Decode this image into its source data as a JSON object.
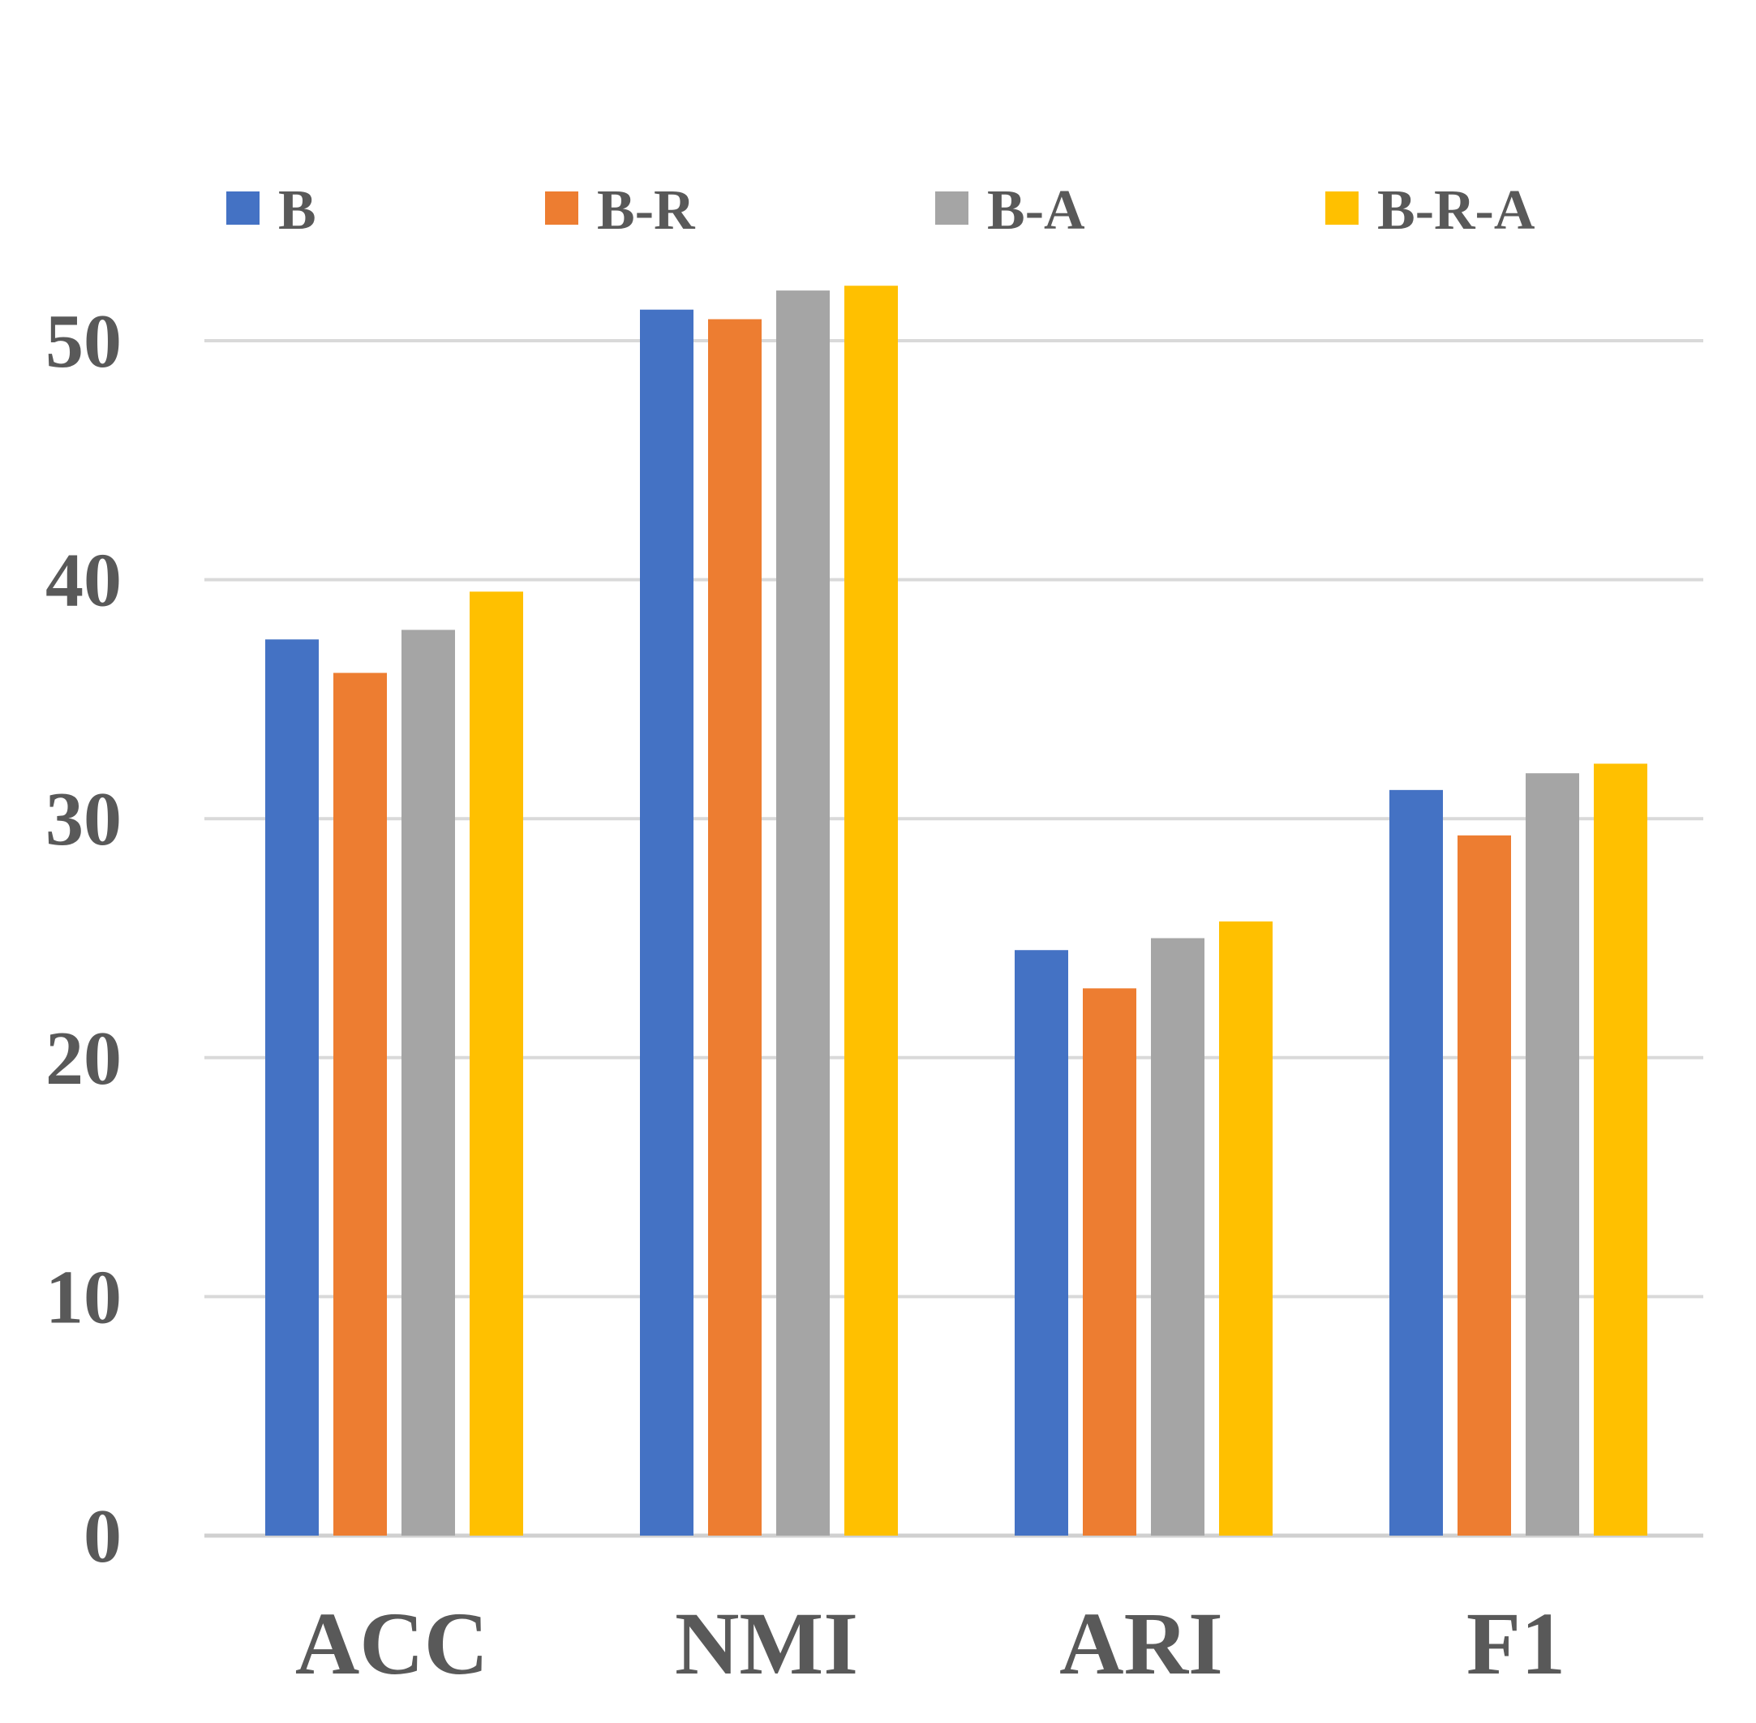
{
  "chart_data": {
    "type": "bar",
    "title": "",
    "xlabel": "",
    "ylabel": "",
    "categories": [
      "ACC",
      "NMI",
      "ARI",
      "F1"
    ],
    "series": [
      {
        "name": "B",
        "color": "#4472C4",
        "values": [
          37.5,
          51.3,
          24.5,
          31.2
        ]
      },
      {
        "name": "B-R",
        "color": "#ED7D31",
        "values": [
          36.1,
          50.9,
          22.9,
          29.3
        ]
      },
      {
        "name": "B-A",
        "color": "#A5A5A5",
        "values": [
          37.9,
          52.1,
          25.0,
          31.9
        ]
      },
      {
        "name": "B-R-A",
        "color": "#FFC000",
        "values": [
          39.5,
          52.3,
          25.7,
          32.3
        ]
      }
    ],
    "ylim": [
      0,
      50
    ],
    "yticks": [
      "0",
      "10",
      "20",
      "30",
      "40",
      "50"
    ],
    "grid": true,
    "legend_position": "top"
  }
}
